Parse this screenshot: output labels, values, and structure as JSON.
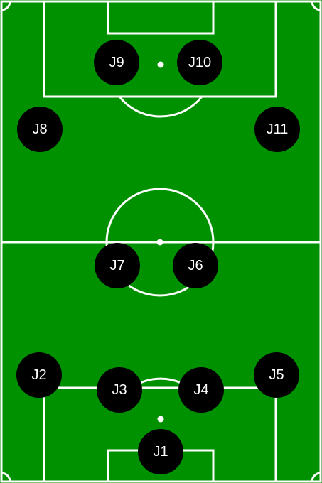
{
  "colors": {
    "grass": "#009100",
    "lines": "#ffffff",
    "player": "#000000",
    "player_text": "#ffffff"
  },
  "players": [
    {
      "id": "j1",
      "label": "J1"
    },
    {
      "id": "j2",
      "label": "J2"
    },
    {
      "id": "j3",
      "label": "J3"
    },
    {
      "id": "j4",
      "label": "J4"
    },
    {
      "id": "j5",
      "label": "J5"
    },
    {
      "id": "j6",
      "label": "J6"
    },
    {
      "id": "j7",
      "label": "J7"
    },
    {
      "id": "j8",
      "label": "J8"
    },
    {
      "id": "j9",
      "label": "J9"
    },
    {
      "id": "j10",
      "label": "J10"
    },
    {
      "id": "j11",
      "label": "J11"
    }
  ]
}
